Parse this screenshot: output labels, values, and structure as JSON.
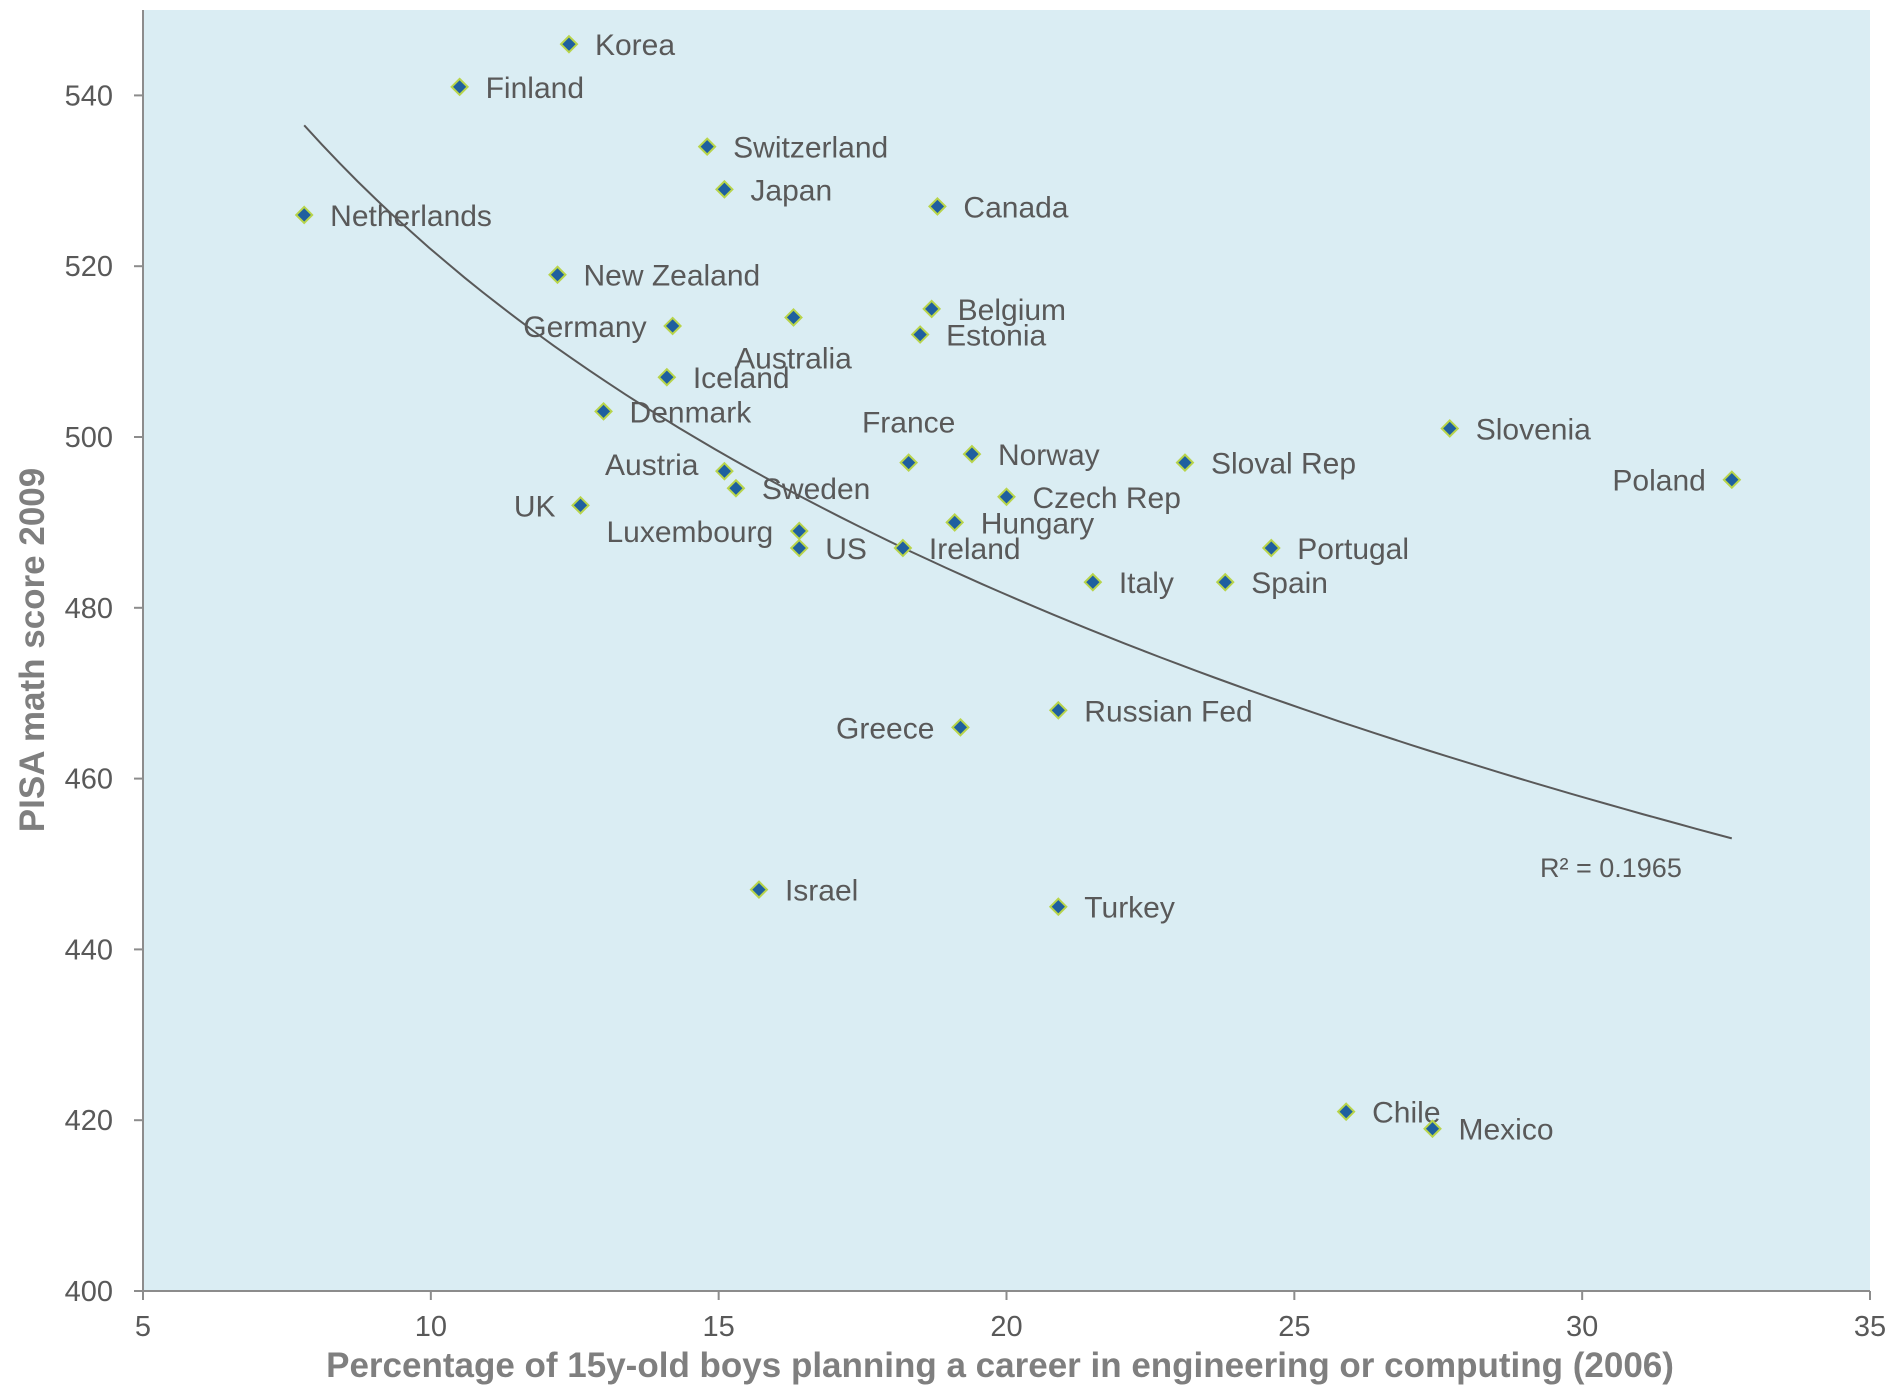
{
  "chart_data": {
    "type": "scatter",
    "xlabel": "Percentage of 15y-old boys planning a career in engineering or computing (2006)",
    "ylabel": "PISA math score 2009",
    "xlim": [
      5,
      35
    ],
    "ylim": [
      400,
      550
    ],
    "xticks": [
      "5",
      "10",
      "15",
      "20",
      "25",
      "30",
      "35"
    ],
    "yticks": [
      "400",
      "420",
      "440",
      "460",
      "480",
      "500",
      "520",
      "540"
    ],
    "grid": false,
    "colors": {
      "plot_bg": "#daedf3",
      "marker_fill": "#1f5f9f",
      "marker_edge": "#b8d44a",
      "trend": "#595959"
    },
    "points": [
      {
        "label": "Korea",
        "x": 12.4,
        "y": 546,
        "pos": "right"
      },
      {
        "label": "Finland",
        "x": 10.5,
        "y": 541,
        "pos": "right"
      },
      {
        "label": "Switzerland",
        "x": 14.8,
        "y": 534,
        "pos": "right"
      },
      {
        "label": "Japan",
        "x": 15.1,
        "y": 529,
        "pos": "right"
      },
      {
        "label": "Canada",
        "x": 18.8,
        "y": 527,
        "pos": "right"
      },
      {
        "label": "Netherlands",
        "x": 7.8,
        "y": 526,
        "pos": "right"
      },
      {
        "label": "New Zealand",
        "x": 12.2,
        "y": 519,
        "pos": "right"
      },
      {
        "label": "Belgium",
        "x": 18.7,
        "y": 515,
        "pos": "right"
      },
      {
        "label": "Australia",
        "x": 16.3,
        "y": 514,
        "pos": "below"
      },
      {
        "label": "Germany",
        "x": 14.2,
        "y": 513,
        "pos": "left"
      },
      {
        "label": "Estonia",
        "x": 18.5,
        "y": 512,
        "pos": "right"
      },
      {
        "label": "Iceland",
        "x": 14.1,
        "y": 507,
        "pos": "right"
      },
      {
        "label": "Denmark",
        "x": 13.0,
        "y": 503,
        "pos": "right"
      },
      {
        "label": "Slovenia",
        "x": 27.7,
        "y": 501,
        "pos": "right"
      },
      {
        "label": "Norway",
        "x": 19.4,
        "y": 498,
        "pos": "right"
      },
      {
        "label": "France",
        "x": 18.3,
        "y": 497,
        "pos": "above"
      },
      {
        "label": "Sloval Rep",
        "x": 23.1,
        "y": 497,
        "pos": "right"
      },
      {
        "label": "Austria",
        "x": 15.1,
        "y": 496,
        "pos": "left-up"
      },
      {
        "label": "Poland",
        "x": 32.6,
        "y": 495,
        "pos": "left"
      },
      {
        "label": "Sweden",
        "x": 15.3,
        "y": 494,
        "pos": "right"
      },
      {
        "label": "Czech Rep",
        "x": 20.0,
        "y": 493,
        "pos": "right"
      },
      {
        "label": "UK",
        "x": 12.6,
        "y": 492,
        "pos": "left-far"
      },
      {
        "label": "Hungary",
        "x": 19.1,
        "y": 490,
        "pos": "right"
      },
      {
        "label": "Luxembourg",
        "x": 16.4,
        "y": 489,
        "pos": "left"
      },
      {
        "label": "US",
        "x": 16.4,
        "y": 487,
        "pos": "right"
      },
      {
        "label": "Portugal",
        "x": 24.6,
        "y": 487,
        "pos": "right"
      },
      {
        "label": "Ireland",
        "x": 18.2,
        "y": 487,
        "pos": "right"
      },
      {
        "label": "Spain",
        "x": 23.8,
        "y": 483,
        "pos": "right"
      },
      {
        "label": "Italy",
        "x": 21.5,
        "y": 483,
        "pos": "right"
      },
      {
        "label": "Russian Fed",
        "x": 20.9,
        "y": 468,
        "pos": "right"
      },
      {
        "label": "Greece",
        "x": 19.2,
        "y": 466,
        "pos": "left"
      },
      {
        "label": "Israel",
        "x": 15.7,
        "y": 447,
        "pos": "right"
      },
      {
        "label": "Turkey",
        "x": 20.9,
        "y": 445,
        "pos": "right"
      },
      {
        "label": "Chile",
        "x": 25.9,
        "y": 421,
        "pos": "right"
      },
      {
        "label": "Mexico",
        "x": 27.4,
        "y": 419,
        "pos": "right"
      }
    ],
    "trendline": {
      "type": "logarithmic",
      "x_range": [
        7.8,
        32.6
      ],
      "y_at_start": 536.5,
      "y_at_end": 453,
      "r_squared_label": "R² = 0.1965"
    }
  }
}
